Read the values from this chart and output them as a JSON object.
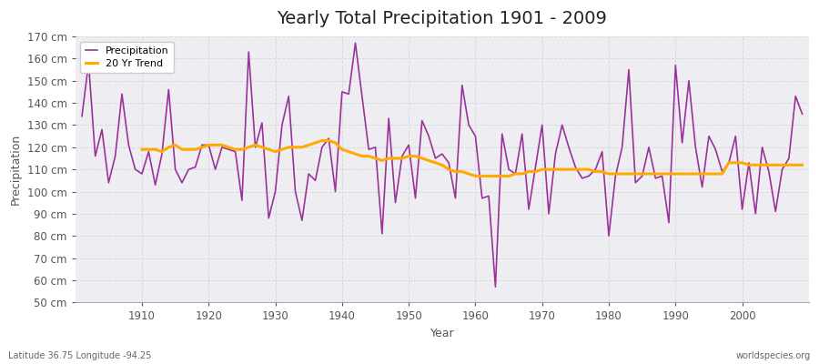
{
  "title": "Yearly Total Precipitation 1901 - 2009",
  "xlabel": "Year",
  "ylabel": "Precipitation",
  "years": [
    1901,
    1902,
    1903,
    1904,
    1905,
    1906,
    1907,
    1908,
    1909,
    1910,
    1911,
    1912,
    1913,
    1914,
    1915,
    1916,
    1917,
    1918,
    1919,
    1920,
    1921,
    1922,
    1923,
    1924,
    1925,
    1926,
    1927,
    1928,
    1929,
    1930,
    1931,
    1932,
    1933,
    1934,
    1935,
    1936,
    1937,
    1938,
    1939,
    1940,
    1941,
    1942,
    1943,
    1944,
    1945,
    1946,
    1947,
    1948,
    1949,
    1950,
    1951,
    1952,
    1953,
    1954,
    1955,
    1956,
    1957,
    1958,
    1959,
    1960,
    1961,
    1962,
    1963,
    1964,
    1965,
    1966,
    1967,
    1968,
    1969,
    1970,
    1971,
    1972,
    1973,
    1974,
    1975,
    1976,
    1977,
    1978,
    1979,
    1980,
    1981,
    1982,
    1983,
    1984,
    1985,
    1986,
    1987,
    1988,
    1989,
    1990,
    1991,
    1992,
    1993,
    1994,
    1995,
    1996,
    1997,
    1998,
    1999,
    2000,
    2001,
    2002,
    2003,
    2004,
    2005,
    2006,
    2007,
    2008,
    2009
  ],
  "precip": [
    134,
    158,
    116,
    128,
    104,
    116,
    144,
    121,
    110,
    108,
    118,
    103,
    117,
    146,
    110,
    104,
    110,
    111,
    121,
    121,
    110,
    120,
    119,
    118,
    96,
    163,
    120,
    131,
    88,
    100,
    130,
    143,
    100,
    87,
    108,
    105,
    120,
    124,
    100,
    145,
    144,
    167,
    143,
    119,
    120,
    81,
    133,
    95,
    116,
    121,
    97,
    132,
    125,
    115,
    117,
    113,
    97,
    148,
    130,
    125,
    97,
    98,
    57,
    126,
    110,
    108,
    126,
    92,
    111,
    130,
    90,
    117,
    130,
    120,
    111,
    106,
    107,
    110,
    118,
    80,
    107,
    120,
    155,
    104,
    107,
    120,
    106,
    107,
    86,
    157,
    122,
    150,
    120,
    102,
    125,
    119,
    109,
    113,
    125,
    92,
    113,
    90,
    120,
    109,
    91,
    110,
    115,
    143,
    135
  ],
  "trend": [
    null,
    null,
    null,
    null,
    null,
    null,
    null,
    null,
    null,
    119,
    119,
    119,
    118,
    120,
    121,
    119,
    119,
    119,
    120,
    121,
    121,
    121,
    120,
    119,
    119,
    120,
    121,
    120,
    119,
    118,
    119,
    120,
    120,
    120,
    121,
    122,
    123,
    123,
    122,
    119,
    118,
    117,
    116,
    116,
    115,
    114,
    115,
    115,
    115,
    116,
    116,
    115,
    114,
    113,
    112,
    110,
    109,
    109,
    108,
    107,
    107,
    107,
    107,
    107,
    107,
    108,
    108,
    109,
    109,
    110,
    110,
    110,
    110,
    110,
    110,
    110,
    110,
    109,
    109,
    108,
    108,
    108,
    108,
    108,
    108,
    108,
    108,
    108,
    108,
    108,
    108,
    108,
    108,
    108,
    108,
    108,
    108,
    113,
    113,
    113,
    112,
    112,
    112,
    112,
    112,
    112,
    112,
    112,
    112
  ],
  "ylim": [
    50,
    170
  ],
  "yticks": [
    50,
    60,
    70,
    80,
    90,
    100,
    110,
    120,
    130,
    140,
    150,
    160,
    170
  ],
  "xticks": [
    1910,
    1920,
    1930,
    1940,
    1950,
    1960,
    1970,
    1980,
    1990,
    2000
  ],
  "fig_bg_color": "#ffffff",
  "plot_bg_color": "#eeeef2",
  "precip_color": "#993399",
  "trend_color": "#ffaa00",
  "grid_color": "#d8d8e0",
  "spine_color": "#aaaaaa",
  "title_fontsize": 14,
  "label_fontsize": 9,
  "tick_fontsize": 8.5,
  "footnote_left": "Latitude 36.75 Longitude -94.25",
  "footnote_right": "worldspecies.org"
}
